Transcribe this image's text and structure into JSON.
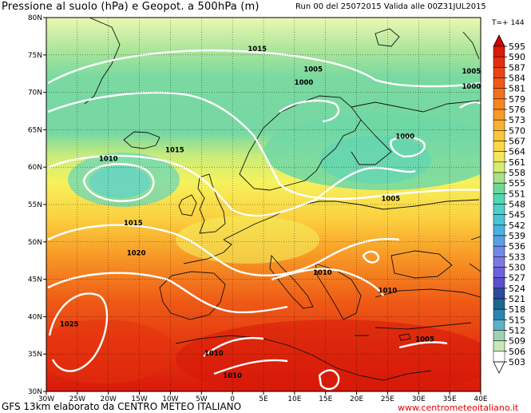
{
  "header": {
    "title": "Pressione al suolo (hPa) e Geopot. a 500hPa (m)",
    "run_info": "Run 00 del 25072015  Valida alle 00Z31JUL2015",
    "forecast_hour": "T=+ 144"
  },
  "footer": {
    "credit": "GFS 13km elaborato da CENTRO METEO ITALIANO",
    "website": "www.centrometeoitaliano.it"
  },
  "map": {
    "lat_ticks": [
      "80N",
      "75N",
      "70N",
      "65N",
      "60N",
      "55N",
      "50N",
      "45N",
      "40N",
      "35N",
      "30N"
    ],
    "lon_ticks": [
      "30W",
      "25W",
      "20W",
      "15W",
      "10W",
      "5W",
      "0",
      "5E",
      "10E",
      "15E",
      "20E",
      "25E",
      "30E",
      "35E",
      "40E"
    ],
    "isobar_labels": [
      {
        "text": "1015",
        "lon": 4,
        "lat": 75.5
      },
      {
        "text": "1005",
        "lon": 13,
        "lat": 72.8
      },
      {
        "text": "1000",
        "lon": 11.5,
        "lat": 71
      },
      {
        "text": "1005",
        "lon": 38.5,
        "lat": 72.5
      },
      {
        "text": "1000",
        "lon": 38.5,
        "lat": 70.5
      },
      {
        "text": "1010",
        "lon": -20,
        "lat": 60.8
      },
      {
        "text": "1015",
        "lon": -9.3,
        "lat": 62
      },
      {
        "text": "1000",
        "lon": 27.8,
        "lat": 63.8
      },
      {
        "text": "1015",
        "lon": -16,
        "lat": 52.2
      },
      {
        "text": "1005",
        "lon": 25.5,
        "lat": 55.5
      },
      {
        "text": "1020",
        "lon": -15.5,
        "lat": 48.2
      },
      {
        "text": "1010",
        "lon": 14.5,
        "lat": 45.6
      },
      {
        "text": "1010",
        "lon": 25,
        "lat": 43.2
      },
      {
        "text": "1025",
        "lon": -26.3,
        "lat": 38.7
      },
      {
        "text": "1005",
        "lon": 31,
        "lat": 36.7
      },
      {
        "text": "1010",
        "lon": -3,
        "lat": 34.8
      },
      {
        "text": "1010",
        "lon": 0,
        "lat": 31.8
      }
    ]
  },
  "colorbar": {
    "values": [
      "595",
      "590",
      "587",
      "584",
      "581",
      "579",
      "576",
      "573",
      "570",
      "567",
      "564",
      "561",
      "558",
      "555",
      "551",
      "548",
      "545",
      "542",
      "539",
      "536",
      "533",
      "530",
      "527",
      "524",
      "521",
      "518",
      "515",
      "512",
      "509",
      "506",
      "503"
    ],
    "colors": [
      "#cc0000",
      "#dd1a0a",
      "#e42e10",
      "#eb4414",
      "#f05a18",
      "#f3701c",
      "#f68520",
      "#f89a28",
      "#fab030",
      "#fcc53a",
      "#fdd845",
      "#f2e65a",
      "#d8ec70",
      "#a6e28a",
      "#6ed89a",
      "#52d7b2",
      "#4cd0c8",
      "#48c4d6",
      "#4ab2e0",
      "#5a9ee4",
      "#6e8ae6",
      "#7c78e4",
      "#6e62da",
      "#5a50c8",
      "#2c4aa0",
      "#1c6690",
      "#2a86b0",
      "#5ab2c8",
      "#9cd2b0",
      "#c8e6b6",
      "#ffffff"
    ]
  }
}
